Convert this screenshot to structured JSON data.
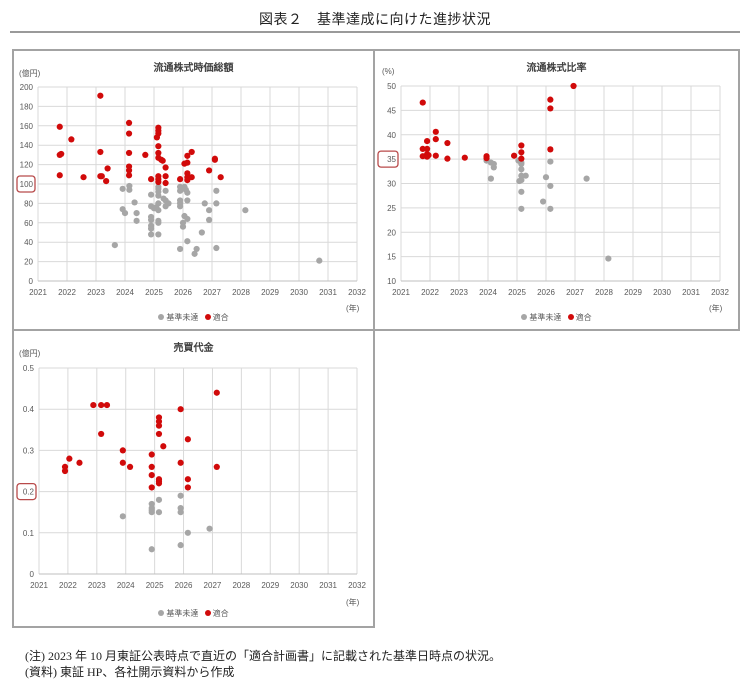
{
  "title": "図表２　基準達成に向けた進捗状況",
  "legend": {
    "unmet": "基準未達",
    "met": "適合"
  },
  "colors": {
    "unmet": "#a6a6a6",
    "met": "#d10a0a",
    "grid": "#d9d9d9",
    "highlight_box": "#b84a4a",
    "tick_text": "#595959"
  },
  "notes": {
    "note": "(注) 2023 年 10 月東証公表時点で直近の「適合計画書」に記載された基準日時点の状況。",
    "source": "(資料) 東証 HP、各社開示資料から作成"
  },
  "chart_data": [
    {
      "type": "scatter",
      "title": "流通株式時価総額",
      "ylabel": "(億円)",
      "xlabel": "(年)",
      "xlim": [
        2021,
        2032
      ],
      "xticks": [
        2021,
        2022,
        2023,
        2024,
        2025,
        2026,
        2027,
        2028,
        2029,
        2030,
        2031,
        2032
      ],
      "ylim": [
        0,
        200
      ],
      "yticks": [
        0,
        20,
        40,
        60,
        80,
        100,
        120,
        140,
        160,
        180,
        200
      ],
      "highlight_ytick": 100,
      "grid": true,
      "legend_position": "bottom",
      "series": [
        {
          "name": "基準未達",
          "color_key": "unmet",
          "points": [
            [
              2023.92,
              95
            ],
            [
              2024.15,
              98
            ],
            [
              2024.15,
              94
            ],
            [
              2024.33,
              81
            ],
            [
              2023.92,
              74
            ],
            [
              2024.0,
              70
            ],
            [
              2024.4,
              70
            ],
            [
              2024.4,
              62
            ],
            [
              2023.65,
              37
            ],
            [
              2024.9,
              89
            ],
            [
              2025.15,
              97
            ],
            [
              2025.15,
              95
            ],
            [
              2025.15,
              92
            ],
            [
              2025.15,
              88
            ],
            [
              2025.4,
              93
            ],
            [
              2024.9,
              77
            ],
            [
              2025.0,
              75
            ],
            [
              2025.08,
              76
            ],
            [
              2025.15,
              80
            ],
            [
              2025.33,
              85
            ],
            [
              2025.4,
              83
            ],
            [
              2025.4,
              77
            ],
            [
              2025.5,
              80
            ],
            [
              2025.15,
              73
            ],
            [
              2024.9,
              66
            ],
            [
              2024.9,
              63
            ],
            [
              2025.15,
              62
            ],
            [
              2025.15,
              60
            ],
            [
              2024.9,
              57
            ],
            [
              2024.9,
              54
            ],
            [
              2024.9,
              48
            ],
            [
              2025.15,
              48
            ],
            [
              2025.9,
              93
            ],
            [
              2025.9,
              97
            ],
            [
              2026.05,
              97
            ],
            [
              2026.1,
              94
            ],
            [
              2026.15,
              91
            ],
            [
              2025.9,
              83
            ],
            [
              2025.9,
              80
            ],
            [
              2025.9,
              77
            ],
            [
              2026.15,
              83
            ],
            [
              2026.05,
              67
            ],
            [
              2026.15,
              64
            ],
            [
              2026.0,
              60
            ],
            [
              2026.0,
              56
            ],
            [
              2026.15,
              41
            ],
            [
              2025.9,
              33
            ],
            [
              2026.4,
              28
            ],
            [
              2026.47,
              33
            ],
            [
              2026.65,
              50
            ],
            [
              2026.75,
              80
            ],
            [
              2026.9,
              73
            ],
            [
              2026.9,
              63
            ],
            [
              2027.15,
              93
            ],
            [
              2027.15,
              80
            ],
            [
              2027.15,
              34
            ],
            [
              2028.15,
              73
            ],
            [
              2030.7,
              21
            ]
          ]
        },
        {
          "name": "適合",
          "color_key": "met",
          "points": [
            [
              2021.75,
              159
            ],
            [
              2021.75,
              130
            ],
            [
              2021.8,
              131
            ],
            [
              2021.75,
              109
            ],
            [
              2022.15,
              146
            ],
            [
              2022.57,
              107
            ],
            [
              2023.15,
              191
            ],
            [
              2023.15,
              133
            ],
            [
              2023.15,
              108
            ],
            [
              2023.2,
              108
            ],
            [
              2023.4,
              116
            ],
            [
              2023.35,
              103
            ],
            [
              2024.14,
              163
            ],
            [
              2024.14,
              152
            ],
            [
              2024.14,
              132
            ],
            [
              2024.14,
              118
            ],
            [
              2024.14,
              114
            ],
            [
              2024.14,
              109
            ],
            [
              2024.7,
              130
            ],
            [
              2024.9,
              105
            ],
            [
              2025.15,
              158
            ],
            [
              2025.15,
              155
            ],
            [
              2025.15,
              152
            ],
            [
              2025.1,
              148
            ],
            [
              2025.15,
              139
            ],
            [
              2025.15,
              132
            ],
            [
              2025.15,
              127
            ],
            [
              2025.25,
              125
            ],
            [
              2025.3,
              124
            ],
            [
              2025.4,
              117
            ],
            [
              2025.15,
              108
            ],
            [
              2025.15,
              105
            ],
            [
              2025.15,
              102
            ],
            [
              2025.4,
              108
            ],
            [
              2025.4,
              101
            ],
            [
              2025.9,
              105
            ],
            [
              2026.05,
              121
            ],
            [
              2026.15,
              122
            ],
            [
              2026.15,
              129
            ],
            [
              2026.3,
              133
            ],
            [
              2026.15,
              111
            ],
            [
              2026.15,
              107
            ],
            [
              2026.15,
              104
            ],
            [
              2026.3,
              107
            ],
            [
              2026.9,
              114
            ],
            [
              2027.1,
              126
            ],
            [
              2027.1,
              125
            ],
            [
              2027.3,
              107
            ]
          ]
        }
      ]
    },
    {
      "type": "scatter",
      "title": "流通株式比率",
      "ylabel": "(%)",
      "xlabel": "(年)",
      "xlim": [
        2021,
        2032
      ],
      "xticks": [
        2021,
        2022,
        2023,
        2024,
        2025,
        2026,
        2027,
        2028,
        2029,
        2030,
        2031,
        2032
      ],
      "ylim": [
        10,
        50
      ],
      "yticks": [
        10,
        15,
        20,
        25,
        30,
        35,
        40,
        45,
        50
      ],
      "highlight_ytick": 35,
      "grid": true,
      "legend_position": "bottom",
      "series": [
        {
          "name": "基準未達",
          "color_key": "unmet",
          "points": [
            [
              2023.95,
              34.7
            ],
            [
              2024.1,
              34.3
            ],
            [
              2024.2,
              34.0
            ],
            [
              2024.2,
              33.3
            ],
            [
              2024.1,
              31.0
            ],
            [
              2025.05,
              34.7
            ],
            [
              2025.15,
              34.3
            ],
            [
              2025.15,
              34.0
            ],
            [
              2025.15,
              32.9
            ],
            [
              2025.15,
              31.6
            ],
            [
              2025.3,
              31.6
            ],
            [
              2025.08,
              30.5
            ],
            [
              2025.15,
              30.7
            ],
            [
              2025.15,
              28.3
            ],
            [
              2026.0,
              31.3
            ],
            [
              2026.15,
              34.5
            ],
            [
              2026.15,
              29.5
            ],
            [
              2027.4,
              31.0
            ],
            [
              2025.9,
              26.3
            ],
            [
              2025.15,
              24.8
            ],
            [
              2026.15,
              24.8
            ],
            [
              2028.15,
              14.6
            ]
          ]
        },
        {
          "name": "適合",
          "color_key": "met",
          "points": [
            [
              2021.75,
              46.6
            ],
            [
              2021.75,
              37.1
            ],
            [
              2021.75,
              35.6
            ],
            [
              2021.9,
              38.7
            ],
            [
              2021.9,
              37.1
            ],
            [
              2021.9,
              36.0
            ],
            [
              2021.9,
              35.5
            ],
            [
              2021.95,
              35.8
            ],
            [
              2022.2,
              40.6
            ],
            [
              2022.2,
              39.1
            ],
            [
              2022.2,
              35.7
            ],
            [
              2022.6,
              38.3
            ],
            [
              2022.6,
              35.1
            ],
            [
              2023.2,
              35.3
            ],
            [
              2023.95,
              35.6
            ],
            [
              2023.95,
              35.2
            ],
            [
              2024.9,
              35.7
            ],
            [
              2025.15,
              37.8
            ],
            [
              2025.15,
              36.4
            ],
            [
              2025.15,
              35.1
            ],
            [
              2026.15,
              47.2
            ],
            [
              2026.15,
              45.4
            ],
            [
              2026.15,
              37.0
            ],
            [
              2026.95,
              50.0
            ]
          ]
        }
      ]
    },
    {
      "type": "scatter",
      "title": "売買代金",
      "ylabel": "(億円)",
      "xlabel": "(年)",
      "xlim": [
        2021,
        2032
      ],
      "xticks": [
        2021,
        2022,
        2023,
        2024,
        2025,
        2026,
        2027,
        2028,
        2029,
        2030,
        2031,
        2032
      ],
      "ylim": [
        0,
        0.5
      ],
      "yticks": [
        0,
        0.1,
        0.2,
        0.3,
        0.4,
        0.5
      ],
      "highlight_ytick": 0.2,
      "grid": true,
      "legend_position": "bottom",
      "series": [
        {
          "name": "基準未達",
          "color_key": "unmet",
          "points": [
            [
              2023.9,
              0.14
            ],
            [
              2024.9,
              0.17
            ],
            [
              2024.9,
              0.16
            ],
            [
              2024.9,
              0.155
            ],
            [
              2024.9,
              0.15
            ],
            [
              2025.15,
              0.18
            ],
            [
              2025.15,
              0.15
            ],
            [
              2025.9,
              0.19
            ],
            [
              2025.9,
              0.16
            ],
            [
              2025.9,
              0.15
            ],
            [
              2026.15,
              0.1
            ],
            [
              2026.9,
              0.11
            ],
            [
              2024.9,
              0.06
            ],
            [
              2025.9,
              0.07
            ]
          ]
        },
        {
          "name": "適合",
          "color_key": "met",
          "points": [
            [
              2022.88,
              0.41
            ],
            [
              2023.15,
              0.41
            ],
            [
              2023.35,
              0.41
            ],
            [
              2023.15,
              0.34
            ],
            [
              2025.15,
              0.38
            ],
            [
              2025.15,
              0.37
            ],
            [
              2025.15,
              0.36
            ],
            [
              2025.15,
              0.34
            ],
            [
              2025.9,
              0.4
            ],
            [
              2026.15,
              0.327
            ],
            [
              2025.3,
              0.31
            ],
            [
              2023.9,
              0.3
            ],
            [
              2024.9,
              0.29
            ],
            [
              2027.15,
              0.44
            ],
            [
              2021.9,
              0.26
            ],
            [
              2021.9,
              0.25
            ],
            [
              2022.05,
              0.28
            ],
            [
              2022.4,
              0.27
            ],
            [
              2023.9,
              0.27
            ],
            [
              2024.15,
              0.26
            ],
            [
              2024.9,
              0.26
            ],
            [
              2024.9,
              0.24
            ],
            [
              2024.9,
              0.21
            ],
            [
              2025.15,
              0.23
            ],
            [
              2025.15,
              0.225
            ],
            [
              2025.15,
              0.22
            ],
            [
              2025.9,
              0.27
            ],
            [
              2026.15,
              0.23
            ],
            [
              2026.15,
              0.21
            ],
            [
              2027.15,
              0.26
            ]
          ]
        }
      ]
    }
  ]
}
